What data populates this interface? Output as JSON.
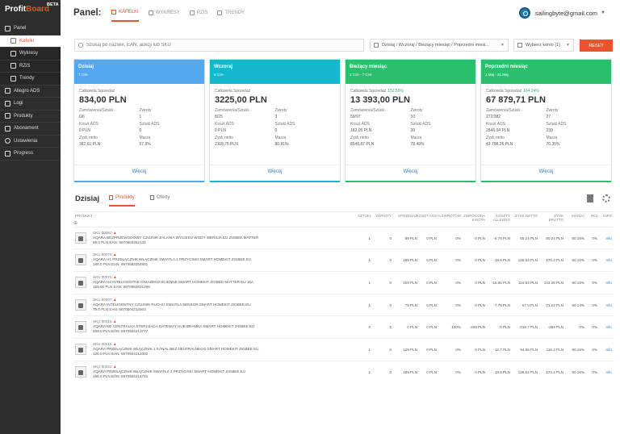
{
  "brand": {
    "name_a": "Profit",
    "name_b": "Board",
    "badge": "BETA"
  },
  "sidebar": {
    "items": [
      {
        "label": "Panel",
        "icon": "monitor-icon",
        "sub": false,
        "active": false
      },
      {
        "label": "Kafelki",
        "icon": "grid-icon",
        "sub": true,
        "active": true
      },
      {
        "label": "Wykresy",
        "icon": "chart-icon",
        "sub": true,
        "active": false
      },
      {
        "label": "RZiS",
        "icon": "list-icon",
        "sub": true,
        "active": false
      },
      {
        "label": "Trendy",
        "icon": "trend-icon",
        "sub": true,
        "active": false
      },
      {
        "label": "Allegro ADS",
        "icon": "ads-icon",
        "sub": false,
        "active": false
      },
      {
        "label": "Logi",
        "icon": "log-icon",
        "sub": false,
        "active": false
      },
      {
        "label": "Produkty",
        "icon": "box-icon",
        "sub": false,
        "active": false
      },
      {
        "label": "Abonament",
        "icon": "card-icon",
        "sub": false,
        "active": false
      },
      {
        "label": "Ustawienia",
        "icon": "gear-icon",
        "sub": false,
        "active": false
      },
      {
        "label": "Progress",
        "icon": "flag-icon",
        "sub": false,
        "active": false
      }
    ]
  },
  "header": {
    "title": "Panel:",
    "tabs": [
      "KAFELKI",
      "WYKRESY",
      "RZIS",
      "TRENDY"
    ],
    "user": "sailingbyte@gmail.com"
  },
  "filters": {
    "search_placeholder": "Szukaj po nazwie, EAN, aukcji lub SKU",
    "period": "Dzisiaj / Wczoraj / Bieżący miesiąc / Poprzedni miesi...",
    "account": "Wybierz konto (1)",
    "reset": "RESET"
  },
  "cards": [
    {
      "title": "Dzisiaj",
      "date": "7 Cze",
      "color": "#54a8ee",
      "sales_label": "Całkowita Sprzedaż",
      "pct": "",
      "sales": "834,00 PLN",
      "cells": [
        [
          "Zamówienia/Sztuki",
          "6/6"
        ],
        [
          "Zwroty",
          "1"
        ],
        [
          "Koszt ADS",
          "0 PLN"
        ],
        [
          "Sztuki ADS",
          "0"
        ],
        [
          "Zysk netto",
          "382,61 PLN"
        ],
        [
          "Marża",
          "57.9%"
        ]
      ]
    },
    {
      "title": "Wczoraj",
      "date": "6 Cze",
      "color": "#15b8cf",
      "sales_label": "Całkowita Sprzedaż",
      "pct": "",
      "sales": "3225,00 PLN",
      "cells": [
        [
          "Zamówienia/Sztuki",
          "8/25"
        ],
        [
          "Zwroty",
          "3"
        ],
        [
          "Koszt ADS",
          "0 PLN"
        ],
        [
          "Sztuki ADS",
          "0"
        ],
        [
          "Zysk netto",
          "2118,75 PLN"
        ],
        [
          "Marża",
          "80.81%"
        ]
      ]
    },
    {
      "title": "Bieżący miesiąc",
      "date": "1 Cze - 7 Cze",
      "color": "#2cbf6e",
      "sales_label": "Całkowita Sprzedaż",
      "pct": "152.55%",
      "sales": "13 393,00 PLN",
      "cells": [
        [
          "Zamówienia/Sztuki",
          "59/97"
        ],
        [
          "Zwroty",
          "10"
        ],
        [
          "Koszt ADS",
          "182,05 PLN"
        ],
        [
          "Sztuki ADS",
          "20"
        ],
        [
          "Zysk netto",
          "8546,87 PLN"
        ],
        [
          "Marża",
          "78.49%"
        ]
      ]
    },
    {
      "title": "Poprzedni miesiąc",
      "date": "1 Maj - 31 Maj",
      "color": "#2cbf6e",
      "sales_label": "Całkowita Sprzedaż",
      "pct": "164.24%",
      "sales": "67 879,71 PLN",
      "cells": [
        [
          "Zamówienia/Sztuki",
          "272/382"
        ],
        [
          "Zwroty",
          "27"
        ],
        [
          "Koszt ADS",
          "2846,04 PLN"
        ],
        [
          "Sztuki ADS",
          "239"
        ],
        [
          "Zysk netto",
          "43 798,26 PLN"
        ],
        [
          "Marża",
          "70.35%"
        ]
      ]
    }
  ],
  "card_more": "Więcej",
  "section": {
    "title": "Dzisiaj",
    "tab_products": "Produkty",
    "tab_offers": "Oferty"
  },
  "table": {
    "headers": [
      "PRODUKT",
      "SZTUKI",
      "ZWROTY",
      "SPRZEDAŻ",
      "KOSZT ADS",
      "% ZWROTÓW",
      "ZWRÓCONA KWOTA",
      "KOSZTY ALLEGRO",
      "ZYSK NETTO",
      "ZYSK BRUTTO",
      "MARŻA",
      "ROI",
      "INFO"
    ],
    "rows": [
      {
        "sku": "SKU 00062",
        "name": "Aqara bezprzewodowy czujnik zalania wycieku wody wersja EU Zigbee Matter",
        "price": "89.0 PLN EAN: 6970583352142",
        "vals": [
          "1",
          "0",
          "89 PLN",
          "0 PLN",
          "0%",
          "0 PLN",
          "-8.76 PLN",
          "65.24 PLN",
          "80.24 PLN",
          "90.16%",
          "0%",
          "Info"
        ]
      },
      {
        "sku": "SKU 00070",
        "name": "Aqara H1 Przełącznik włącznik światła 2 przyciski Smart Homekit Zigbee EU",
        "price": "186.0 PLN EAN: 6970583354931",
        "vals": [
          "1",
          "0",
          "189 PLN",
          "0 PLN",
          "0%",
          "0 PLN",
          "-18.6 PLN",
          "138.54 PLN",
          "170.4 PLN",
          "90.16%",
          "0%",
          "Info"
        ]
      },
      {
        "sku": "SKU 00075",
        "name": "Aqara H2 inteligentne gniazdko ścienne Smart Homekit Zigbee Matter EU 16A",
        "price": "159.00 PLN EAN: 6970583831299",
        "vals": [
          "1",
          "0",
          "159 PLN",
          "0 PLN",
          "0%",
          "0 PLN",
          "-15.65 PLN",
          "116.54 PLN",
          "143.35 PLN",
          "90.15%",
          "0%",
          "Info"
        ]
      },
      {
        "sku": "SKU 00007",
        "name": "Aqara inteligentny czujnik ruchu światła sensor Smart Homekit Zigbee EU",
        "price": "79.0 PLN EAN: 6970504212503",
        "vals": [
          "1",
          "0",
          "79 PLN",
          "0 PLN",
          "0%",
          "0 PLN",
          "-7.78 PLN",
          "57.9 PLN",
          "71.22 PLN",
          "90.14%",
          "0%",
          "Info"
        ]
      },
      {
        "sku": "SKU 00016",
        "name": "Aqara M2 centralka sterująca gateway hub bramka Smart Homekit Zigbee EU",
        "price": "269.0 PLN EAN: 6970504213777",
        "vals": [
          "0",
          "1",
          "0 PLN",
          "0 PLN",
          "100%",
          "-269 PLN",
          "0 PLN",
          "-216.7 PLN",
          "-269 PLN",
          "0%",
          "0%",
          "Info"
        ]
      },
      {
        "sku": "SKU 00015",
        "name": "Aqara Przełącznik włącznik 1 kanał bez neutralnego Smart Homekit Zigbee EU",
        "price": "126.0 PLN EAN: 6970504213302",
        "vals": [
          "1",
          "0",
          "129 PLN",
          "0 PLN",
          "0%",
          "0 PLN",
          "-12.7 PLN",
          "94.55 PLN",
          "116.3 PLN",
          "90.15%",
          "0%",
          "Info"
        ]
      },
      {
        "sku": "SKU 00022",
        "name": "Aqara Przełącznik włącznik światła 2 przyciski Smart Homekit Zigbee EU",
        "price": "186.0 PLN EAN: 6970504214781",
        "vals": [
          "1",
          "0",
          "189 PLN",
          "0 PLN",
          "0%",
          "0 PLN",
          "-18.6 PLN",
          "138.54 PLN",
          "170.4 PLN",
          "90.16%",
          "0%",
          "Info"
        ]
      }
    ]
  }
}
